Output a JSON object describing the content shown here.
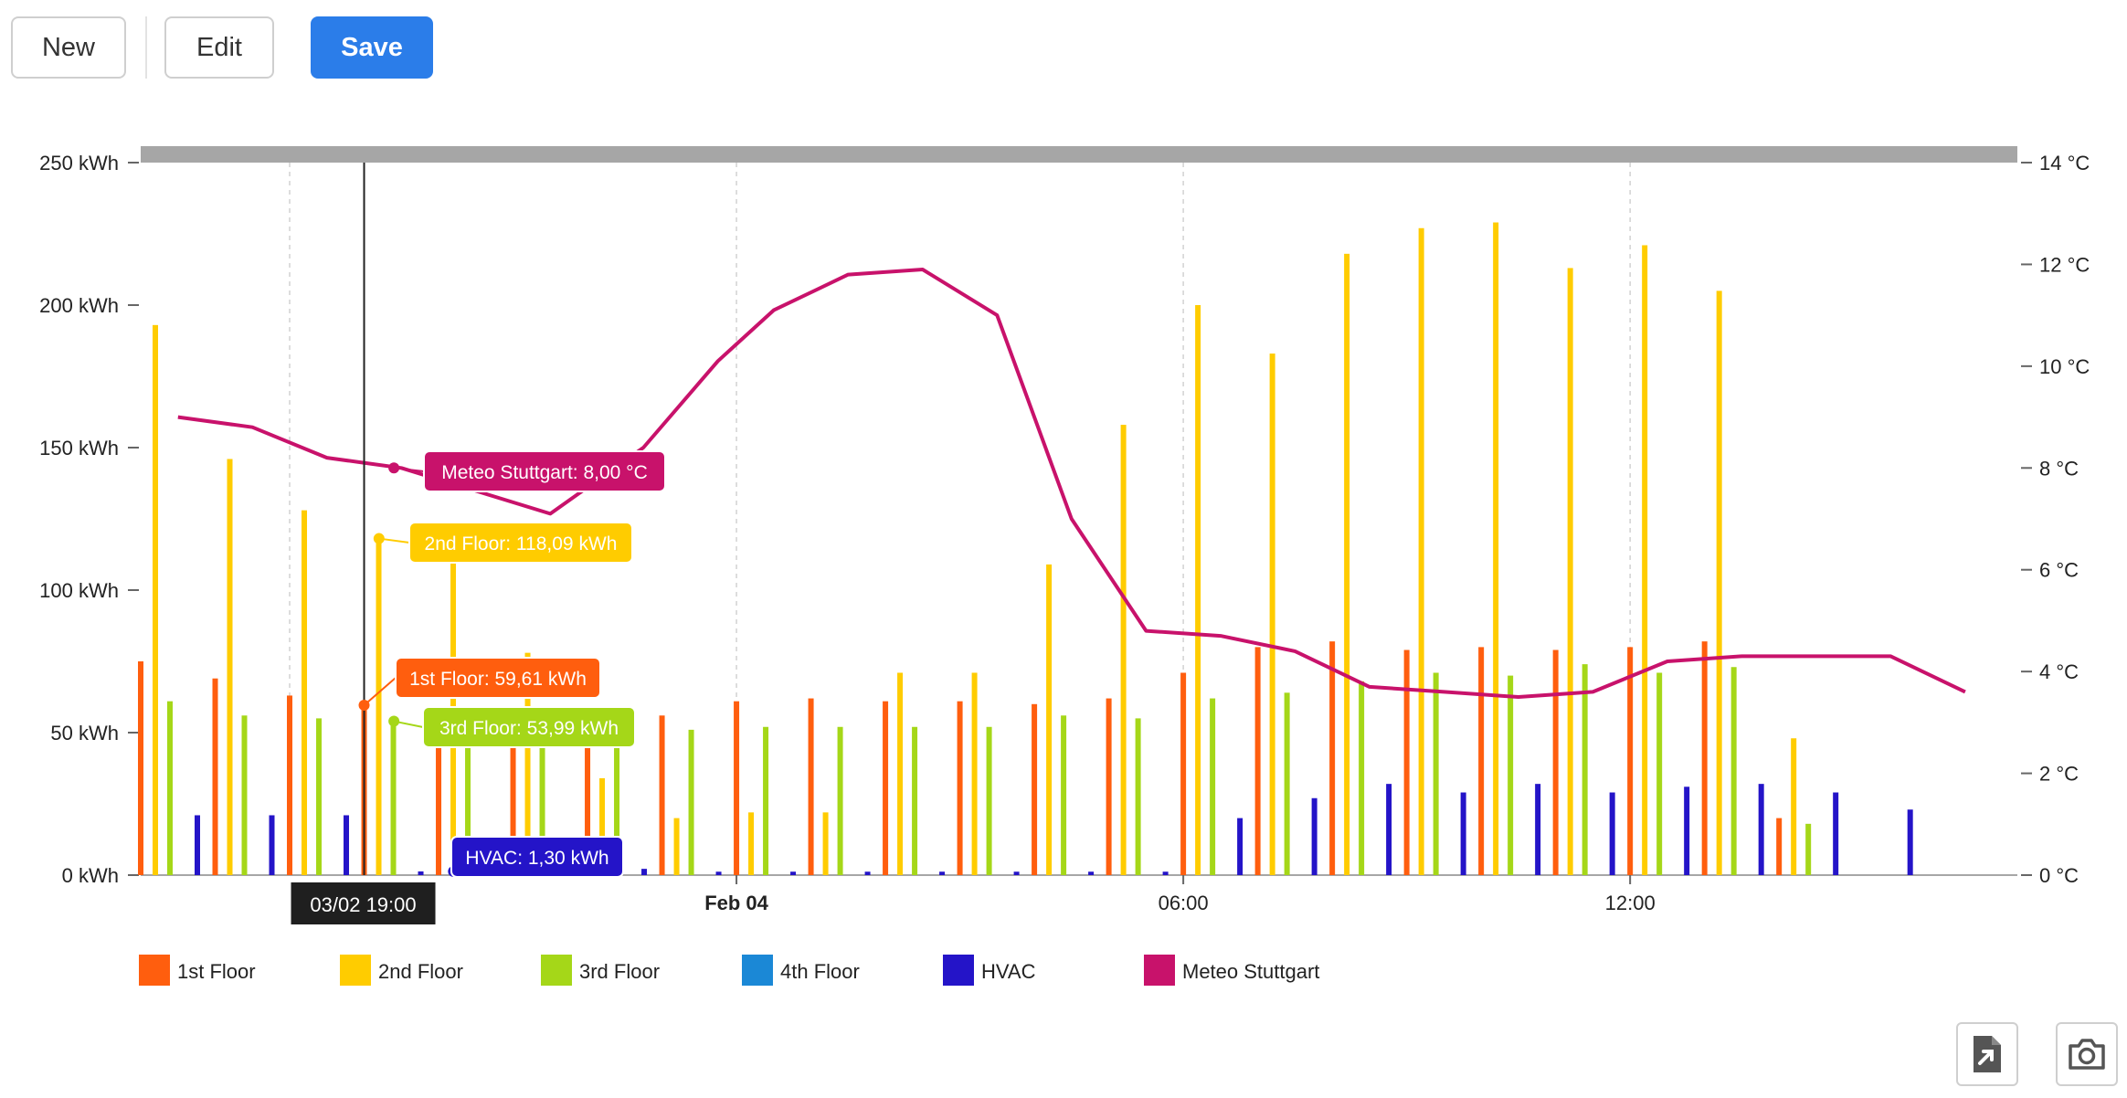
{
  "toolbar": {
    "new_label": "New",
    "edit_label": "Edit",
    "save_label": "Save"
  },
  "icons": {
    "export": "export-file-icon",
    "screenshot": "camera-icon"
  },
  "colors": {
    "first_floor": "#ff5e0e",
    "second_floor": "#ffcc00",
    "third_floor": "#a5d718",
    "fourth_floor": "#1b88d6",
    "hvac": "#2414c8",
    "meteo": "#c8126b",
    "save_button": "#2b7de9"
  },
  "chart_data": {
    "type": "bar",
    "title": "",
    "x_axis": {
      "start_hour": 16,
      "end_hour": 41.2,
      "ticks": [
        {
          "hour": 24,
          "label": "Feb 04",
          "bold": true
        },
        {
          "hour": 30,
          "label": "06:00",
          "bold": false
        },
        {
          "hour": 36,
          "label": "12:00",
          "bold": false
        }
      ],
      "crosshair": {
        "hour": 19,
        "label": "03/02 19:00"
      }
    },
    "y_left": {
      "range": [
        0,
        250
      ],
      "ticks": [
        {
          "value": 0,
          "label": "0 kWh"
        },
        {
          "value": 50,
          "label": "50 kWh"
        },
        {
          "value": 100,
          "label": "100 kWh"
        },
        {
          "value": 150,
          "label": "150 kWh"
        },
        {
          "value": 200,
          "label": "200 kWh"
        },
        {
          "value": 250,
          "label": "250 kWh"
        }
      ]
    },
    "y_right": {
      "range": [
        0,
        14
      ],
      "ticks": [
        {
          "value": 0,
          "label": "0 °C"
        },
        {
          "value": 2,
          "label": "2 °C"
        },
        {
          "value": 4,
          "label": "4 °C"
        },
        {
          "value": 6,
          "label": "6 °C"
        },
        {
          "value": 8,
          "label": "8 °C"
        },
        {
          "value": 10,
          "label": "10 °C"
        },
        {
          "value": 12,
          "label": "12 °C"
        },
        {
          "value": 14,
          "label": "14 °C"
        }
      ]
    },
    "categories": [
      "03/02 16:00",
      "03/02 17:00",
      "03/02 18:00",
      "03/02 19:00",
      "03/02 20:00",
      "03/02 21:00",
      "03/02 22:00",
      "03/02 23:00",
      "04/02 00:00",
      "04/02 01:00",
      "04/02 02:00",
      "04/02 03:00",
      "04/02 04:00",
      "04/02 05:00",
      "04/02 06:00",
      "04/02 07:00",
      "04/02 08:00",
      "04/02 09:00",
      "04/02 10:00",
      "04/02 11:00",
      "04/02 12:00",
      "04/02 13:00",
      "04/02 14:00",
      "04/02 15:00"
    ],
    "series": [
      {
        "name": "1st Floor",
        "key": "first_floor",
        "values": [
          75,
          69,
          63,
          59.61,
          56,
          57,
          57,
          56,
          61,
          62,
          61,
          61,
          60,
          62,
          71,
          80,
          82,
          79,
          80,
          79,
          80,
          82,
          20,
          0
        ]
      },
      {
        "name": "2nd Floor",
        "key": "second_floor",
        "values": [
          193,
          146,
          128,
          118.09,
          110,
          78,
          34,
          20,
          22,
          22,
          71,
          71,
          109,
          158,
          200,
          183,
          218,
          227,
          229,
          213,
          221,
          205,
          48,
          0
        ]
      },
      {
        "name": "3rd Floor",
        "key": "third_floor",
        "values": [
          61,
          56,
          55,
          53.99,
          52,
          51,
          45,
          51,
          52,
          52,
          52,
          52,
          56,
          55,
          62,
          64,
          68,
          71,
          70,
          74,
          71,
          73,
          18,
          0
        ]
      },
      {
        "name": "4th Floor",
        "key": "fourth_floor",
        "values": [
          0,
          0,
          0,
          0,
          0,
          0,
          0,
          0,
          0,
          0,
          0,
          0,
          0,
          0,
          0,
          0,
          0,
          0,
          0,
          0,
          0,
          0,
          0,
          0
        ]
      },
      {
        "name": "HVAC",
        "key": "hvac",
        "values": [
          21,
          21,
          21,
          1.3,
          1.3,
          1.3,
          2.2,
          1.2,
          1.2,
          1.2,
          1.2,
          1.2,
          1.2,
          1.2,
          20,
          27,
          32,
          29,
          32,
          29,
          31,
          32,
          29,
          23
        ]
      }
    ],
    "line_series": {
      "name": "Meteo Stuttgart",
      "key": "meteo",
      "axis": "right",
      "points": [
        {
          "hour": 16.5,
          "value": 9.0
        },
        {
          "hour": 17.5,
          "value": 8.8
        },
        {
          "hour": 18.5,
          "value": 8.2
        },
        {
          "hour": 19.5,
          "value": 8.0
        },
        {
          "hour": 21.5,
          "value": 7.1
        },
        {
          "hour": 22.75,
          "value": 8.4
        },
        {
          "hour": 23.75,
          "value": 10.1
        },
        {
          "hour": 24.5,
          "value": 11.1
        },
        {
          "hour": 25.5,
          "value": 11.8
        },
        {
          "hour": 26.5,
          "value": 11.9
        },
        {
          "hour": 27.5,
          "value": 11.0
        },
        {
          "hour": 28.5,
          "value": 7.0
        },
        {
          "hour": 29.5,
          "value": 4.8
        },
        {
          "hour": 30.5,
          "value": 4.7
        },
        {
          "hour": 31.5,
          "value": 4.4
        },
        {
          "hour": 32.5,
          "value": 3.7
        },
        {
          "hour": 33.5,
          "value": 3.6
        },
        {
          "hour": 34.5,
          "value": 3.5
        },
        {
          "hour": 35.5,
          "value": 3.6
        },
        {
          "hour": 36.5,
          "value": 4.2
        },
        {
          "hour": 37.5,
          "value": 4.3
        },
        {
          "hour": 38.5,
          "value": 4.3
        },
        {
          "hour": 39.5,
          "value": 4.3
        },
        {
          "hour": 40.5,
          "value": 3.6
        }
      ]
    },
    "tooltips": [
      {
        "series": "meteo",
        "label": "Meteo Stuttgart: 8,00 °C",
        "hour": 19.4,
        "value": 8.0,
        "axis": "right"
      },
      {
        "series": "second_floor",
        "label": "2nd Floor: 118,09 kWh",
        "hour": 19.2,
        "value": 118.09,
        "axis": "left"
      },
      {
        "series": "first_floor",
        "label": "1st Floor: 59,61 kWh",
        "hour": 19.0,
        "value": 59.61,
        "axis": "left"
      },
      {
        "series": "third_floor",
        "label": "3rd Floor: 53,99 kWh",
        "hour": 19.4,
        "value": 53.99,
        "axis": "left"
      },
      {
        "series": "hvac",
        "label": "HVAC: 1,30 kWh",
        "hour": 20.2,
        "value": 1.3,
        "axis": "left"
      }
    ],
    "legend": [
      {
        "label": "1st Floor",
        "key": "first_floor"
      },
      {
        "label": "2nd Floor",
        "key": "second_floor"
      },
      {
        "label": "3rd Floor",
        "key": "third_floor"
      },
      {
        "label": "4th Floor",
        "key": "fourth_floor"
      },
      {
        "label": "HVAC",
        "key": "hvac"
      },
      {
        "label": "Meteo Stuttgart",
        "key": "meteo"
      }
    ],
    "legend_position": "bottom-left",
    "grid": true
  }
}
